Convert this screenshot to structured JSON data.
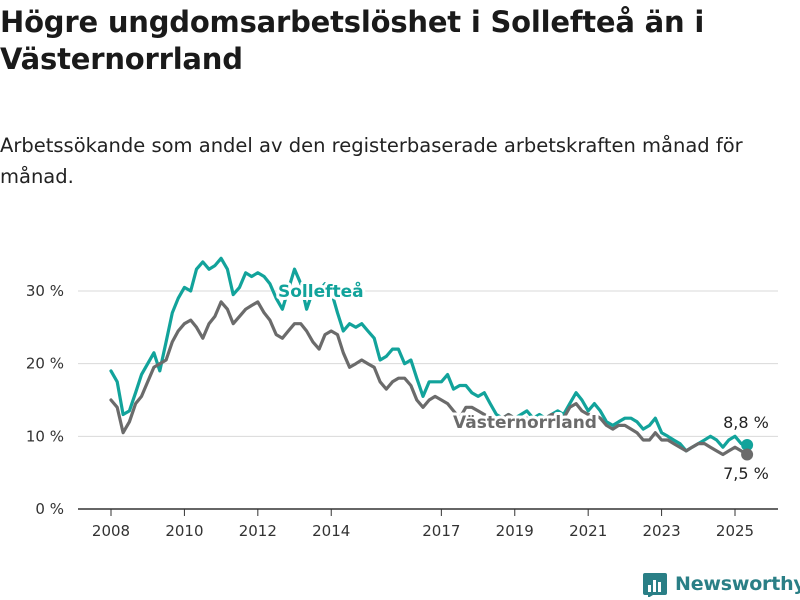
{
  "title": "Högre ungdomsarbetslöshet i Sollefteå än i Västernorrland",
  "subtitle": "Arbetssökande som andel av den registerbaserade arbetskraften månad för månad.",
  "brand": "Newsworthy",
  "chart_data": {
    "type": "line",
    "x_unit": "year",
    "y_unit": "%",
    "ylim": [
      0,
      35
    ],
    "xlim": [
      2007.5,
      2026.0
    ],
    "y_ticks": [
      {
        "value": 0,
        "label": "0 %"
      },
      {
        "value": 10,
        "label": "10 %"
      },
      {
        "value": 20,
        "label": "20 %"
      },
      {
        "value": 30,
        "label": "30 %"
      }
    ],
    "x_ticks": [
      {
        "value": 2008,
        "label": "2008"
      },
      {
        "value": 2010,
        "label": "2010"
      },
      {
        "value": 2012,
        "label": "2012"
      },
      {
        "value": 2014,
        "label": "2014"
      },
      {
        "value": 2017,
        "label": "2017"
      },
      {
        "value": 2019,
        "label": "2019"
      },
      {
        "value": 2021,
        "label": "2021"
      },
      {
        "value": 2023,
        "label": "2023"
      },
      {
        "value": 2025,
        "label": "2025"
      }
    ],
    "grid": true,
    "series": [
      {
        "name": "Sollefteå",
        "color": "#12a39b",
        "end_label": "8,8 %",
        "points": [
          [
            2008.0,
            19.0
          ],
          [
            2008.17,
            17.5
          ],
          [
            2008.33,
            13.0
          ],
          [
            2008.5,
            13.5
          ],
          [
            2008.67,
            16.0
          ],
          [
            2008.83,
            18.5
          ],
          [
            2009.0,
            20.0
          ],
          [
            2009.17,
            21.5
          ],
          [
            2009.33,
            19.0
          ],
          [
            2009.5,
            23.0
          ],
          [
            2009.67,
            27.0
          ],
          [
            2009.83,
            29.0
          ],
          [
            2010.0,
            30.5
          ],
          [
            2010.17,
            30.0
          ],
          [
            2010.33,
            33.0
          ],
          [
            2010.5,
            34.0
          ],
          [
            2010.67,
            33.0
          ],
          [
            2010.83,
            33.5
          ],
          [
            2011.0,
            34.5
          ],
          [
            2011.17,
            33.0
          ],
          [
            2011.33,
            29.5
          ],
          [
            2011.5,
            30.5
          ],
          [
            2011.67,
            32.5
          ],
          [
            2011.83,
            32.0
          ],
          [
            2012.0,
            32.5
          ],
          [
            2012.17,
            32.0
          ],
          [
            2012.33,
            31.0
          ],
          [
            2012.5,
            29.0
          ],
          [
            2012.67,
            27.5
          ],
          [
            2013.0,
            33.0
          ],
          [
            2013.17,
            31.0
          ],
          [
            2013.33,
            27.5
          ],
          [
            2013.5,
            30.0
          ],
          [
            2013.67,
            30.0
          ],
          [
            2013.83,
            31.0
          ],
          [
            2014.0,
            30.0
          ],
          [
            2014.17,
            27.0
          ],
          [
            2014.33,
            24.5
          ],
          [
            2014.5,
            25.5
          ],
          [
            2014.67,
            25.0
          ],
          [
            2014.83,
            25.5
          ],
          [
            2015.0,
            24.5
          ],
          [
            2015.17,
            23.5
          ],
          [
            2015.33,
            20.5
          ],
          [
            2015.5,
            21.0
          ],
          [
            2015.67,
            22.0
          ],
          [
            2015.83,
            22.0
          ],
          [
            2016.0,
            20.0
          ],
          [
            2016.17,
            20.5
          ],
          [
            2016.33,
            18.0
          ],
          [
            2016.5,
            15.5
          ],
          [
            2016.67,
            17.5
          ],
          [
            2016.83,
            17.5
          ],
          [
            2017.0,
            17.5
          ],
          [
            2017.17,
            18.5
          ],
          [
            2017.33,
            16.5
          ],
          [
            2017.5,
            17.0
          ],
          [
            2017.67,
            17.0
          ],
          [
            2017.83,
            16.0
          ],
          [
            2018.0,
            15.5
          ],
          [
            2018.17,
            16.0
          ],
          [
            2018.33,
            14.5
          ],
          [
            2018.5,
            13.0
          ],
          [
            2018.67,
            12.5
          ],
          [
            2018.83,
            13.0
          ],
          [
            2019.0,
            12.5
          ],
          [
            2019.17,
            13.0
          ],
          [
            2019.33,
            13.5
          ],
          [
            2019.5,
            12.5
          ],
          [
            2019.67,
            13.0
          ],
          [
            2019.83,
            12.5
          ],
          [
            2020.0,
            13.0
          ],
          [
            2020.17,
            13.5
          ],
          [
            2020.33,
            13.0
          ],
          [
            2020.5,
            14.5
          ],
          [
            2020.67,
            16.0
          ],
          [
            2020.83,
            15.0
          ],
          [
            2021.0,
            13.5
          ],
          [
            2021.17,
            14.5
          ],
          [
            2021.33,
            13.5
          ],
          [
            2021.5,
            12.0
          ],
          [
            2021.67,
            11.5
          ],
          [
            2021.83,
            12.0
          ],
          [
            2022.0,
            12.5
          ],
          [
            2022.17,
            12.5
          ],
          [
            2022.33,
            12.0
          ],
          [
            2022.5,
            11.0
          ],
          [
            2022.67,
            11.5
          ],
          [
            2022.83,
            12.5
          ],
          [
            2023.0,
            10.5
          ],
          [
            2023.17,
            10.0
          ],
          [
            2023.33,
            9.5
          ],
          [
            2023.5,
            9.0
          ],
          [
            2023.67,
            8.0
          ],
          [
            2023.83,
            8.5
          ],
          [
            2024.0,
            9.0
          ],
          [
            2024.17,
            9.5
          ],
          [
            2024.33,
            10.0
          ],
          [
            2024.5,
            9.5
          ],
          [
            2024.67,
            8.5
          ],
          [
            2024.83,
            9.5
          ],
          [
            2025.0,
            10.0
          ],
          [
            2025.17,
            9.0
          ],
          [
            2025.33,
            8.8
          ]
        ]
      },
      {
        "name": "Västernorrland",
        "color": "#6b6b6b",
        "end_label": "7,5 %",
        "points": [
          [
            2008.0,
            15.0
          ],
          [
            2008.17,
            14.0
          ],
          [
            2008.33,
            10.5
          ],
          [
            2008.5,
            12.0
          ],
          [
            2008.67,
            14.5
          ],
          [
            2008.83,
            15.5
          ],
          [
            2009.0,
            17.5
          ],
          [
            2009.17,
            19.5
          ],
          [
            2009.33,
            20.0
          ],
          [
            2009.5,
            20.5
          ],
          [
            2009.67,
            23.0
          ],
          [
            2009.83,
            24.5
          ],
          [
            2010.0,
            25.5
          ],
          [
            2010.17,
            26.0
          ],
          [
            2010.33,
            25.0
          ],
          [
            2010.5,
            23.5
          ],
          [
            2010.67,
            25.5
          ],
          [
            2010.83,
            26.5
          ],
          [
            2011.0,
            28.5
          ],
          [
            2011.17,
            27.5
          ],
          [
            2011.33,
            25.5
          ],
          [
            2011.5,
            26.5
          ],
          [
            2011.67,
            27.5
          ],
          [
            2011.83,
            28.0
          ],
          [
            2012.0,
            28.5
          ],
          [
            2012.17,
            27.0
          ],
          [
            2012.33,
            26.0
          ],
          [
            2012.5,
            24.0
          ],
          [
            2012.67,
            23.5
          ],
          [
            2012.83,
            24.5
          ],
          [
            2013.0,
            25.5
          ],
          [
            2013.17,
            25.5
          ],
          [
            2013.33,
            24.5
          ],
          [
            2013.5,
            23.0
          ],
          [
            2013.67,
            22.0
          ],
          [
            2013.83,
            24.0
          ],
          [
            2014.0,
            24.5
          ],
          [
            2014.17,
            24.0
          ],
          [
            2014.33,
            21.5
          ],
          [
            2014.5,
            19.5
          ],
          [
            2014.67,
            20.0
          ],
          [
            2014.83,
            20.5
          ],
          [
            2015.0,
            20.0
          ],
          [
            2015.17,
            19.5
          ],
          [
            2015.33,
            17.5
          ],
          [
            2015.5,
            16.5
          ],
          [
            2015.67,
            17.5
          ],
          [
            2015.83,
            18.0
          ],
          [
            2016.0,
            18.0
          ],
          [
            2016.17,
            17.0
          ],
          [
            2016.33,
            15.0
          ],
          [
            2016.5,
            14.0
          ],
          [
            2016.67,
            15.0
          ],
          [
            2016.83,
            15.5
          ],
          [
            2017.0,
            15.0
          ],
          [
            2017.17,
            14.5
          ],
          [
            2017.33,
            13.5
          ],
          [
            2017.5,
            12.5
          ],
          [
            2017.67,
            14.0
          ],
          [
            2017.83,
            14.0
          ],
          [
            2018.0,
            13.5
          ],
          [
            2018.17,
            13.0
          ],
          [
            2018.33,
            12.5
          ],
          [
            2018.5,
            12.0
          ],
          [
            2018.67,
            12.5
          ],
          [
            2018.83,
            13.0
          ],
          [
            2019.0,
            12.5
          ],
          [
            2019.17,
            12.0
          ],
          [
            2019.33,
            12.5
          ],
          [
            2019.5,
            12.0
          ],
          [
            2019.67,
            12.5
          ],
          [
            2019.83,
            12.5
          ],
          [
            2020.0,
            13.0
          ],
          [
            2020.17,
            13.0
          ],
          [
            2020.33,
            12.5
          ],
          [
            2020.5,
            14.0
          ],
          [
            2020.67,
            14.5
          ],
          [
            2020.83,
            13.5
          ],
          [
            2021.0,
            13.0
          ],
          [
            2021.17,
            13.0
          ],
          [
            2021.33,
            12.5
          ],
          [
            2021.5,
            11.5
          ],
          [
            2021.67,
            11.0
          ],
          [
            2021.83,
            11.5
          ],
          [
            2022.0,
            11.5
          ],
          [
            2022.17,
            11.0
          ],
          [
            2022.33,
            10.5
          ],
          [
            2022.5,
            9.5
          ],
          [
            2022.67,
            9.5
          ],
          [
            2022.83,
            10.5
          ],
          [
            2023.0,
            9.5
          ],
          [
            2023.17,
            9.5
          ],
          [
            2023.33,
            9.0
          ],
          [
            2023.5,
            8.5
          ],
          [
            2023.67,
            8.0
          ],
          [
            2023.83,
            8.5
          ],
          [
            2024.0,
            9.0
          ],
          [
            2024.17,
            9.0
          ],
          [
            2024.33,
            8.5
          ],
          [
            2024.5,
            8.0
          ],
          [
            2024.67,
            7.5
          ],
          [
            2024.83,
            8.0
          ],
          [
            2025.0,
            8.5
          ],
          [
            2025.17,
            8.0
          ],
          [
            2025.33,
            7.5
          ]
        ]
      }
    ]
  }
}
